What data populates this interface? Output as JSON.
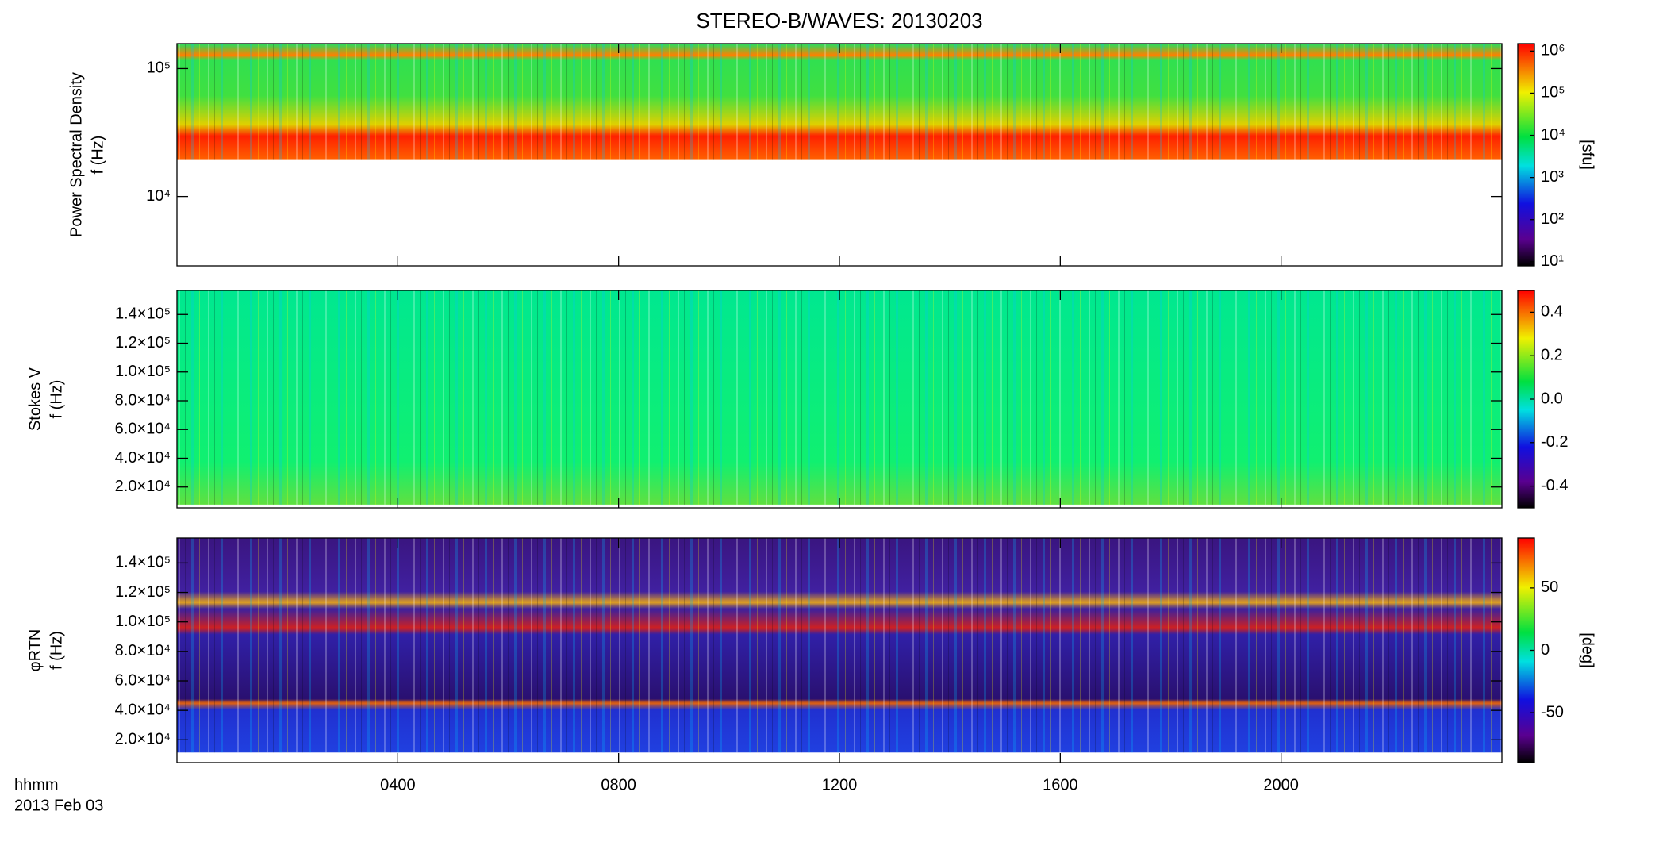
{
  "title": "STEREO-B/WAVES: 20130203",
  "x_axis": {
    "label": "hhmm",
    "date": "2013 Feb 03",
    "xlim": [
      0,
      1440
    ],
    "xticks": [
      {
        "value": 240,
        "label": "0400"
      },
      {
        "value": 480,
        "label": "0800"
      },
      {
        "value": 720,
        "label": "1200"
      },
      {
        "value": 960,
        "label": "1600"
      },
      {
        "value": 1200,
        "label": "2000"
      }
    ]
  },
  "chart_data": [
    {
      "type": "heatmap",
      "ylabel": [
        "Power Spectral Density",
        "f (Hz)"
      ],
      "log_y": true,
      "ylim": [
        2870,
        156700
      ],
      "yticks": [
        {
          "value": 10000,
          "label": "10⁴"
        },
        {
          "value": 100000,
          "label": "10⁵"
        }
      ],
      "colorbar": {
        "label": "[sfu]",
        "log": true,
        "lim": [
          8,
          1500000
        ],
        "ticks": [
          {
            "value": 10,
            "label": "10¹"
          },
          {
            "value": 100,
            "label": "10²"
          },
          {
            "value": 1000,
            "label": "10³"
          },
          {
            "value": 10000,
            "label": "10⁴"
          },
          {
            "value": 100000,
            "label": "10⁵"
          },
          {
            "value": 1000000,
            "label": "10⁶"
          }
        ]
      }
    },
    {
      "type": "heatmap",
      "ylabel": [
        "Stokes V",
        "f (Hz)"
      ],
      "log_y": false,
      "ylim": [
        5500,
        156700
      ],
      "yticks": [
        {
          "value": 20000,
          "label": "2.0×10⁴"
        },
        {
          "value": 40000,
          "label": "4.0×10⁴"
        },
        {
          "value": 60000,
          "label": "6.0×10⁴"
        },
        {
          "value": 80000,
          "label": "8.0×10⁴"
        },
        {
          "value": 100000,
          "label": "1.0×10⁵"
        },
        {
          "value": 120000,
          "label": "1.2×10⁵"
        },
        {
          "value": 140000,
          "label": "1.4×10⁵"
        }
      ],
      "colorbar": {
        "log": false,
        "lim": [
          -0.5,
          0.5
        ],
        "ticks": [
          -0.4,
          -0.2,
          {
            "value": 0,
            "label": "0.0"
          },
          0.2,
          0.4
        ]
      }
    },
    {
      "type": "heatmap",
      "ylabel": [
        "φRTN",
        "f (Hz)"
      ],
      "log_y": false,
      "ylim": [
        4560,
        156900
      ],
      "yticks": [
        {
          "value": 20000,
          "label": "2.0×10⁴"
        },
        {
          "value": 40000,
          "label": "4.0×10⁴"
        },
        {
          "value": 60000,
          "label": "6.0×10⁴"
        },
        {
          "value": 80000,
          "label": "8.0×10⁴"
        },
        {
          "value": 100000,
          "label": "1.0×10⁵"
        },
        {
          "value": 120000,
          "label": "1.2×10⁵"
        },
        {
          "value": 140000,
          "label": "1.4×10⁵"
        }
      ],
      "colorbar": {
        "label": "[deg]",
        "log": false,
        "lim": [
          -90,
          90
        ],
        "ticks": [
          -50,
          0,
          50
        ]
      }
    }
  ]
}
